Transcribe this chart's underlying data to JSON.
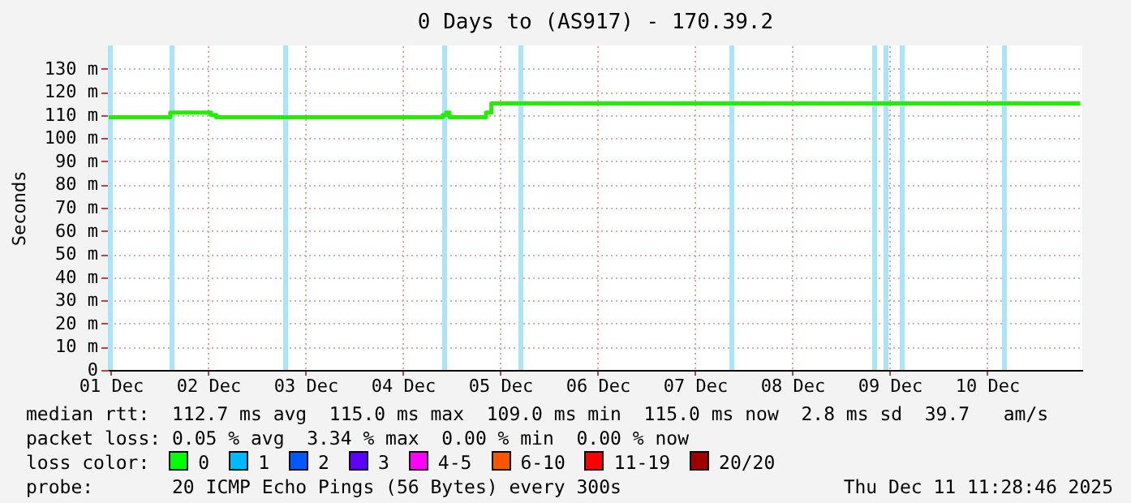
{
  "chart_data": {
    "type": "step",
    "title": "0 Days to (AS917) - 170.39.2",
    "ylabel": "Seconds",
    "x": [
      "2025-12-01T11:30",
      "2025-12-02T02:40",
      "2025-12-02T12:40",
      "2025-12-02T14:00",
      "2025-12-04T21:50",
      "2025-12-04T22:40",
      "2025-12-04T23:30",
      "2025-12-05T08:30",
      "2025-12-05T09:50",
      "2025-12-11T11:00"
    ],
    "series": [
      {
        "color": "#22ee00",
        "values": [
          109,
          111,
          110,
          109,
          110,
          111,
          109,
          111,
          115,
          115
        ]
      }
    ],
    "xlim": [
      "2025-12-01T11:30",
      "2025-12-11T11:30"
    ],
    "xticks": [
      {
        "value": "2025-12-01T12:00",
        "label": "01 Dec"
      },
      {
        "value": "2025-12-02T12:00",
        "label": "02 Dec"
      },
      {
        "value": "2025-12-03T12:00",
        "label": "03 Dec"
      },
      {
        "value": "2025-12-04T12:00",
        "label": "04 Dec"
      },
      {
        "value": "2025-12-05T12:00",
        "label": "05 Dec"
      },
      {
        "value": "2025-12-06T12:00",
        "label": "06 Dec"
      },
      {
        "value": "2025-12-07T12:00",
        "label": "07 Dec"
      },
      {
        "value": "2025-12-08T12:00",
        "label": "08 Dec"
      },
      {
        "value": "2025-12-09T12:00",
        "label": "09 Dec"
      },
      {
        "value": "2025-12-10T12:00",
        "label": "10 Dec"
      }
    ],
    "ylim": [
      0,
      140
    ],
    "yticks": [
      0,
      {
        "value": 10,
        "label": "10 m"
      },
      {
        "value": 20,
        "label": "20 m"
      },
      {
        "value": 30,
        "label": "30 m"
      },
      {
        "value": 40,
        "label": "40 m"
      },
      {
        "value": 50,
        "label": "50 m"
      },
      {
        "value": 60,
        "label": "60 m"
      },
      {
        "value": 70,
        "label": "70 m"
      },
      {
        "value": 80,
        "label": "80 m"
      },
      {
        "value": 90,
        "label": "90 m"
      },
      {
        "value": 100,
        "label": "100 m"
      },
      {
        "value": 110,
        "label": "110 m"
      },
      {
        "value": 120,
        "label": "120 m"
      },
      {
        "value": 130,
        "label": "130 m"
      }
    ],
    "grid": true,
    "ref_lines": [
      {
        "axis": "x",
        "value": "2025-12-01T11:54",
        "color": "#a8e4fa"
      },
      {
        "axis": "x",
        "value": "2025-12-02T03:06",
        "color": "#a8e4fa"
      },
      {
        "axis": "x",
        "value": "2025-12-03T07:06",
        "color": "#a8e4fa"
      },
      {
        "axis": "x",
        "value": "2025-12-04T22:18",
        "color": "#a8e4fa"
      },
      {
        "axis": "x",
        "value": "2025-12-05T17:06",
        "color": "#a8e4fa"
      },
      {
        "axis": "x",
        "value": "2025-12-07T21:06",
        "color": "#a8e4fa"
      },
      {
        "axis": "x",
        "value": "2025-12-09T08:18",
        "color": "#a8e4fa"
      },
      {
        "axis": "x",
        "value": "2025-12-09T11:06",
        "color": "#a8e4fa"
      },
      {
        "axis": "x",
        "value": "2025-12-09T15:06",
        "color": "#a8e4fa"
      },
      {
        "axis": "x",
        "value": "2025-12-10T16:18",
        "color": "#a8e4fa"
      }
    ],
    "annotations": [
      "median rtt:  112.7 ms avg  115.0 ms max  109.0 ms min  115.0 ms now  2.8 ms sd  39.7   am/s",
      "packet loss: 0.05 % avg  3.34 % max  0.00 % min  0.00 % now",
      "loss color:",
      "0",
      "1",
      "2",
      "3",
      "4-5",
      "6-10",
      "11-19",
      "20/20",
      "probe:       20 ICMP Echo Pings (56 Bytes) every 300s",
      "Thu Dec 11 11:28:46 2025"
    ]
  }
}
